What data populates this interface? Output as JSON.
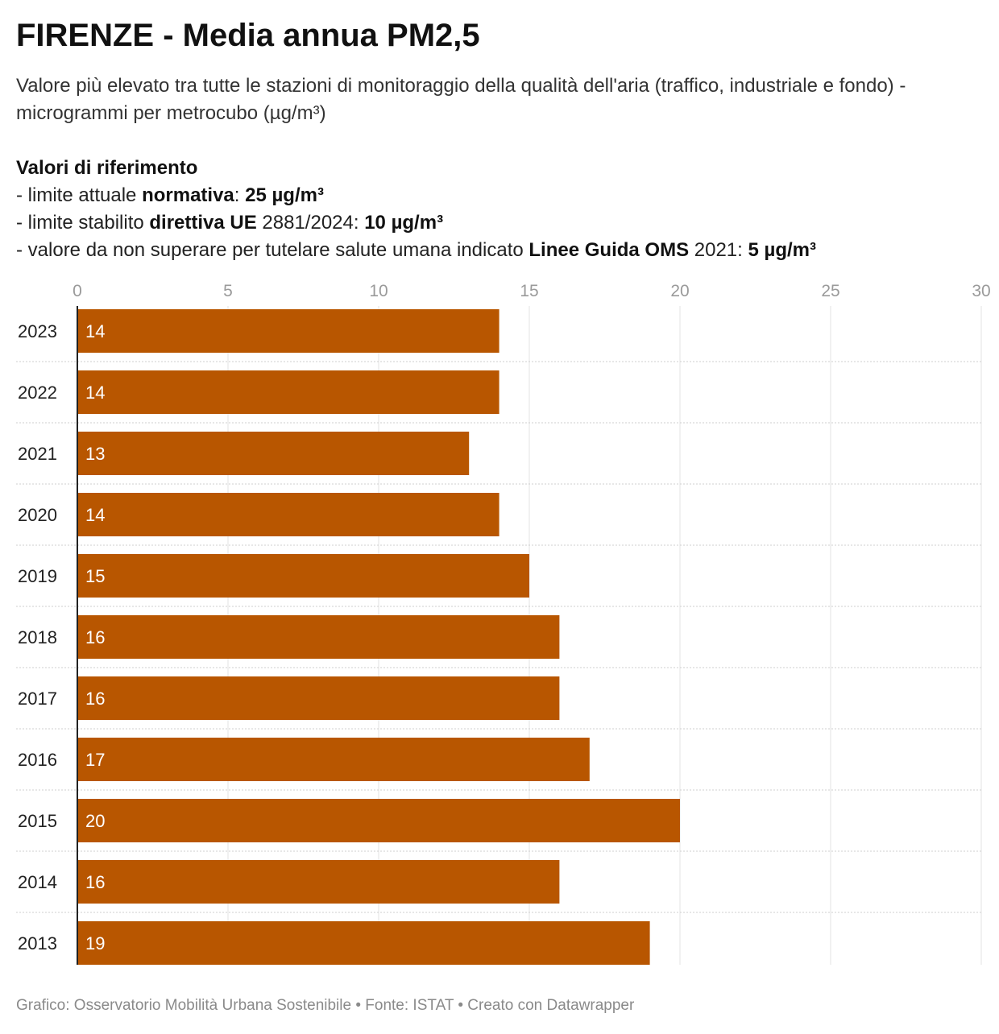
{
  "title": "FIRENZE - Media annua PM2,5",
  "subtitle": "Valore più elevato tra tutte le stazioni di monitoraggio della qualità dell'aria (traffico, industriale e fondo) - microgrammi per metrocubo (µg/m³)",
  "references": {
    "heading": "Valori di riferimento",
    "line1": {
      "pre": "- limite attuale ",
      "bold1": "normativa",
      "mid": ": ",
      "bold2": "25 µg/m³"
    },
    "line2": {
      "pre": "- limite stabilito ",
      "bold1": "direttiva UE",
      "mid": " 2881/2024: ",
      "bold2": "10 µg/m³"
    },
    "line3": {
      "pre": "- valore da non superare per tutelare salute umana indicato ",
      "bold1": "Linee Guida OMS",
      "mid": " 2021: ",
      "bold2": "5 µg/m³"
    }
  },
  "chart_data": {
    "type": "bar",
    "orientation": "horizontal",
    "categories": [
      "2023",
      "2022",
      "2021",
      "2020",
      "2019",
      "2018",
      "2017",
      "2016",
      "2015",
      "2014",
      "2013"
    ],
    "values": [
      14,
      14,
      13,
      14,
      15,
      16,
      16,
      17,
      20,
      16,
      19
    ],
    "xlim": [
      0,
      30
    ],
    "xticks": [
      0,
      5,
      10,
      15,
      20,
      25,
      30
    ],
    "tick_position": "top",
    "grid": true,
    "bar_color": "#b85600",
    "label_color": "#ffffff"
  },
  "footer": "Grafico: Osservatorio Mobilità Urbana Sostenibile • Fonte: ISTAT • Creato con Datawrapper"
}
